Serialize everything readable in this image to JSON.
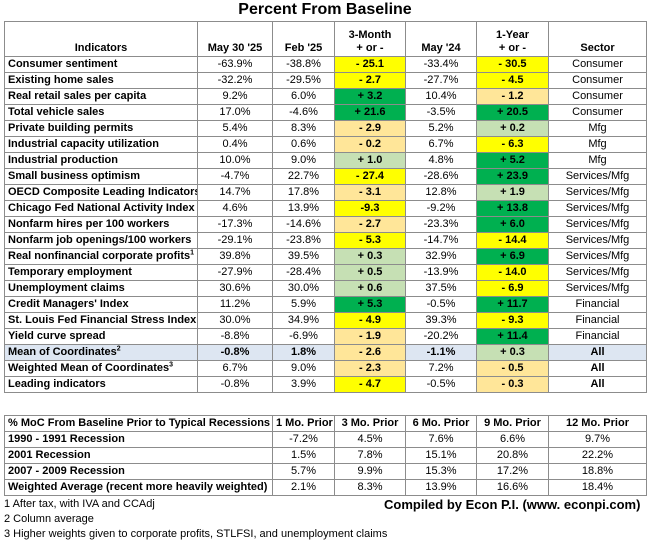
{
  "title": "Percent From Baseline",
  "colors": {
    "yellow": "#ffff00",
    "light_yellow": "#ffe699",
    "light_green": "#c6e0b4",
    "green": "#00b050",
    "summary_bg": "#dde6f2",
    "border": "#8c8c8c"
  },
  "headers": {
    "indicators": "Indicators",
    "col1": "May 30 '25",
    "col2": "Feb '25",
    "col3_line1": "3-Month",
    "col3_line2": "+ or -",
    "col4": "May '24",
    "col5_line1": "1-Year",
    "col5_line2": "+ or -",
    "col6": "Sector"
  },
  "rows": [
    {
      "name": "Consumer sentiment",
      "sup": "",
      "v1": "-63.9%",
      "v2": "-38.8%",
      "m3": "- 25.1",
      "m3c": "yellow",
      "v4": "-33.4%",
      "y1": "- 30.5",
      "y1c": "yellow",
      "sector": "Consumer"
    },
    {
      "name": "Existing home sales",
      "sup": "",
      "v1": "-32.2%",
      "v2": "-29.5%",
      "m3": "- 2.7",
      "m3c": "yellow",
      "v4": "-27.7%",
      "y1": "- 4.5",
      "y1c": "yellow",
      "sector": "Consumer"
    },
    {
      "name": "Real retail sales per capita",
      "sup": "",
      "v1": "9.2%",
      "v2": "6.0%",
      "m3": "+ 3.2",
      "m3c": "green",
      "v4": "10.4%",
      "y1": "- 1.2",
      "y1c": "light_yellow",
      "sector": "Consumer"
    },
    {
      "name": "Total vehicle sales",
      "sup": "",
      "v1": "17.0%",
      "v2": "-4.6%",
      "m3": "+ 21.6",
      "m3c": "green",
      "v4": "-3.5%",
      "y1": "+ 20.5",
      "y1c": "green",
      "sector": "Consumer"
    },
    {
      "name": "Private building permits",
      "sup": "",
      "v1": "5.4%",
      "v2": "8.3%",
      "m3": "- 2.9",
      "m3c": "light_yellow",
      "v4": "5.2%",
      "y1": "+ 0.2",
      "y1c": "light_green",
      "sector": "Mfg"
    },
    {
      "name": "Industrial capacity utilization",
      "sup": "",
      "v1": "0.4%",
      "v2": "0.6%",
      "m3": "- 0.2",
      "m3c": "light_yellow",
      "v4": "6.7%",
      "y1": "- 6.3",
      "y1c": "yellow",
      "sector": "Mfg"
    },
    {
      "name": "Industrial production",
      "sup": "",
      "v1": "10.0%",
      "v2": "9.0%",
      "m3": "+ 1.0",
      "m3c": "light_green",
      "v4": "4.8%",
      "y1": "+ 5.2",
      "y1c": "green",
      "sector": "Mfg"
    },
    {
      "name": "Small business optimism",
      "sup": "",
      "v1": "-4.7%",
      "v2": "22.7%",
      "m3": "- 27.4",
      "m3c": "yellow",
      "v4": "-28.6%",
      "y1": "+ 23.9",
      "y1c": "green",
      "sector": "Services/Mfg"
    },
    {
      "name": "OECD Composite Leading Indicators",
      "sup": "",
      "v1": "14.7%",
      "v2": "17.8%",
      "m3": "- 3.1",
      "m3c": "light_yellow",
      "v4": "12.8%",
      "y1": "+ 1.9",
      "y1c": "light_green",
      "sector": "Services/Mfg"
    },
    {
      "name": "Chicago Fed National Activity Index",
      "sup": "",
      "v1": "4.6%",
      "v2": "13.9%",
      "m3": "-9.3",
      "m3c": "yellow",
      "v4": "-9.2%",
      "y1": "+ 13.8",
      "y1c": "green",
      "sector": "Services/Mfg"
    },
    {
      "name": "Nonfarm hires per 100 workers",
      "sup": "",
      "v1": "-17.3%",
      "v2": "-14.6%",
      "m3": "- 2.7",
      "m3c": "light_yellow",
      "v4": "-23.3%",
      "y1": "+ 6.0",
      "y1c": "green",
      "sector": "Services/Mfg"
    },
    {
      "name": "Nonfarm job openings/100 workers",
      "sup": "",
      "v1": "-29.1%",
      "v2": "-23.8%",
      "m3": "- 5.3",
      "m3c": "yellow",
      "v4": "-14.7%",
      "y1": "- 14.4",
      "y1c": "yellow",
      "sector": "Services/Mfg"
    },
    {
      "name": "Real nonfinancial corporate profits",
      "sup": "1",
      "v1": "39.8%",
      "v2": "39.5%",
      "m3": "+ 0.3",
      "m3c": "light_green",
      "v4": "32.9%",
      "y1": "+ 6.9",
      "y1c": "green",
      "sector": "Services/Mfg"
    },
    {
      "name": "Temporary employment",
      "sup": "",
      "v1": "-27.9%",
      "v2": "-28.4%",
      "m3": "+ 0.5",
      "m3c": "light_green",
      "v4": "-13.9%",
      "y1": "- 14.0",
      "y1c": "yellow",
      "sector": "Services/Mfg"
    },
    {
      "name": "Unemployment claims",
      "sup": "",
      "v1": "30.6%",
      "v2": "30.0%",
      "m3": "+ 0.6",
      "m3c": "light_green",
      "v4": "37.5%",
      "y1": "- 6.9",
      "y1c": "yellow",
      "sector": "Services/Mfg"
    },
    {
      "name": "Credit Managers' Index",
      "sup": "",
      "v1": "11.2%",
      "v2": "5.9%",
      "m3": "+ 5.3",
      "m3c": "green",
      "v4": "-0.5%",
      "y1": "+ 11.7",
      "y1c": "green",
      "sector": "Financial"
    },
    {
      "name": "St. Louis Fed Financial Stress Index",
      "sup": "",
      "v1": "30.0%",
      "v2": "34.9%",
      "m3": "- 4.9",
      "m3c": "yellow",
      "v4": "39.3%",
      "y1": "- 9.3",
      "y1c": "yellow",
      "sector": "Financial"
    },
    {
      "name": "Yield curve spread",
      "sup": "",
      "v1": "-8.8%",
      "v2": "-6.9%",
      "m3": "- 1.9",
      "m3c": "light_yellow",
      "v4": "-20.2%",
      "y1": "+ 11.4",
      "y1c": "green",
      "sector": "Financial"
    }
  ],
  "summary_rows": [
    {
      "name": "Mean of Coordinates",
      "sup": "2",
      "v1": "-0.8%",
      "v2": "1.8%",
      "m3": "- 2.6",
      "m3c": "light_yellow",
      "v4": "-1.1%",
      "y1": "+ 0.3",
      "y1c": "light_green",
      "sector": "All",
      "shaded": true
    },
    {
      "name": "Weighted Mean of Coordinates",
      "sup": "3",
      "v1": "6.7%",
      "v2": "9.0%",
      "m3": "- 2.3",
      "m3c": "light_yellow",
      "v4": "7.2%",
      "y1": "- 0.5",
      "y1c": "light_yellow",
      "sector": "All",
      "shaded": false
    },
    {
      "name": "Leading indicators",
      "sup": "",
      "v1": "-0.8%",
      "v2": "3.9%",
      "m3": "- 4.7",
      "m3c": "yellow",
      "v4": "-0.5%",
      "y1": "- 0.3",
      "y1c": "light_yellow",
      "sector": "All",
      "shaded": false
    }
  ],
  "recession_table": {
    "headers": [
      "% MoC From Baseline Prior to  Typical Recessions",
      "1 Mo. Prior",
      "3 Mo. Prior",
      "6 Mo. Prior",
      "9 Mo. Prior",
      "12 Mo. Prior"
    ],
    "rows": [
      {
        "name": "1990 - 1991 Recession",
        "values": [
          "-7.2%",
          "4.5%",
          "7.6%",
          "6.6%",
          "9.7%"
        ]
      },
      {
        "name": "2001 Recession",
        "values": [
          "1.5%",
          "7.8%",
          "15.1%",
          "20.8%",
          "22.2%"
        ]
      },
      {
        "name": "2007 - 2009 Recession",
        "values": [
          "5.7%",
          "9.9%",
          "15.3%",
          "17.2%",
          "18.8%"
        ]
      },
      {
        "name": "Weighted Average (recent more heavily weighted)",
        "values": [
          "2.1%",
          "8.3%",
          "13.9%",
          "16.6%",
          "18.4%"
        ]
      }
    ]
  },
  "footnotes": [
    "1 After tax, with IVA and CCAdj",
    "2 Column average",
    "3 Higher weights given to corporate profits, STLFSI, and unemployment claims"
  ],
  "credit": "Compiled by Econ P.I. (www. econpi.com)"
}
